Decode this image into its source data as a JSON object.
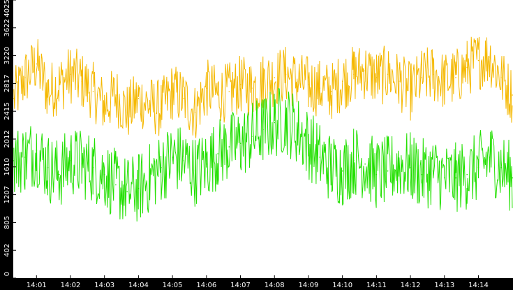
{
  "chart_data": {
    "type": "line",
    "title": "",
    "xlabel": "",
    "ylabel": "",
    "x_tick_labels": [
      "14:01",
      "14:02",
      "14:03",
      "14:04",
      "14:05",
      "14:06",
      "14:07",
      "14:08",
      "14:09",
      "14:10",
      "14:11",
      "14:12",
      "14:13",
      "14:14"
    ],
    "y_tick_labels": [
      "0",
      "402",
      "805",
      "1207",
      "1610",
      "2012",
      "2415",
      "2817",
      "3220",
      "3622",
      "4025"
    ],
    "xlim": [
      "14:00:19",
      "14:15:01"
    ],
    "ylim": [
      0,
      4025
    ],
    "grid": false,
    "legend": "none",
    "colors": {
      "background": "#000000",
      "plot": "#ffffff",
      "axis_text": "#ffffff",
      "series_a": "#f5b800",
      "series_b": "#22e000"
    },
    "series": [
      {
        "color": "#f5b800",
        "x": [
          "14:00:20",
          "14:00:40",
          "14:01:00",
          "14:01:20",
          "14:01:40",
          "14:02:00",
          "14:02:20",
          "14:02:40",
          "14:03:00",
          "14:03:20",
          "14:03:40",
          "14:04:00",
          "14:04:20",
          "14:04:40",
          "14:05:00",
          "14:05:20",
          "14:05:40",
          "14:06:00",
          "14:06:20",
          "14:06:40",
          "14:07:00",
          "14:07:20",
          "14:07:40",
          "14:08:00",
          "14:08:20",
          "14:08:40",
          "14:09:00",
          "14:09:20",
          "14:09:40",
          "14:10:00",
          "14:10:20",
          "14:10:40",
          "14:11:00",
          "14:11:20",
          "14:11:40",
          "14:12:00",
          "14:12:20",
          "14:12:40",
          "14:13:00",
          "14:13:20",
          "14:13:40",
          "14:14:00",
          "14:14:20",
          "14:14:40",
          "14:15:00"
        ],
        "y": [
          2600,
          2900,
          3100,
          2700,
          2800,
          2950,
          2850,
          2700,
          2500,
          2650,
          2400,
          2600,
          2500,
          2450,
          2700,
          2600,
          2400,
          2750,
          2650,
          2700,
          2800,
          2750,
          2850,
          2900,
          2950,
          2850,
          2800,
          2750,
          2700,
          2850,
          2950,
          3000,
          2900,
          2950,
          2850,
          2700,
          2900,
          2950,
          2850,
          2900,
          3050,
          3150,
          3200,
          2900,
          2650
        ]
      },
      {
        "color": "#22e000",
        "x": [
          "14:00:20",
          "14:00:40",
          "14:01:00",
          "14:01:20",
          "14:01:40",
          "14:02:00",
          "14:02:20",
          "14:02:40",
          "14:03:00",
          "14:03:20",
          "14:03:40",
          "14:04:00",
          "14:04:20",
          "14:04:40",
          "14:05:00",
          "14:05:20",
          "14:05:40",
          "14:06:00",
          "14:06:20",
          "14:06:40",
          "14:07:00",
          "14:07:20",
          "14:07:40",
          "14:08:00",
          "14:08:20",
          "14:08:40",
          "14:09:00",
          "14:09:20",
          "14:09:40",
          "14:10:00",
          "14:10:20",
          "14:10:40",
          "14:11:00",
          "14:11:20",
          "14:11:40",
          "14:12:00",
          "14:12:20",
          "14:12:40",
          "14:13:00",
          "14:13:20",
          "14:13:40",
          "14:14:00",
          "14:14:20",
          "14:14:40",
          "14:15:00"
        ],
        "y": [
          1700,
          1750,
          1850,
          1600,
          1500,
          1700,
          1650,
          1600,
          1500,
          1350,
          1250,
          1300,
          1450,
          1600,
          1750,
          1700,
          1550,
          1650,
          1800,
          1900,
          1950,
          2050,
          2150,
          2250,
          2300,
          2150,
          1950,
          1750,
          1600,
          1550,
          1700,
          1650,
          1500,
          1550,
          1650,
          1600,
          1500,
          1550,
          1450,
          1450,
          1500,
          1600,
          1750,
          1600,
          1450
        ]
      }
    ]
  }
}
